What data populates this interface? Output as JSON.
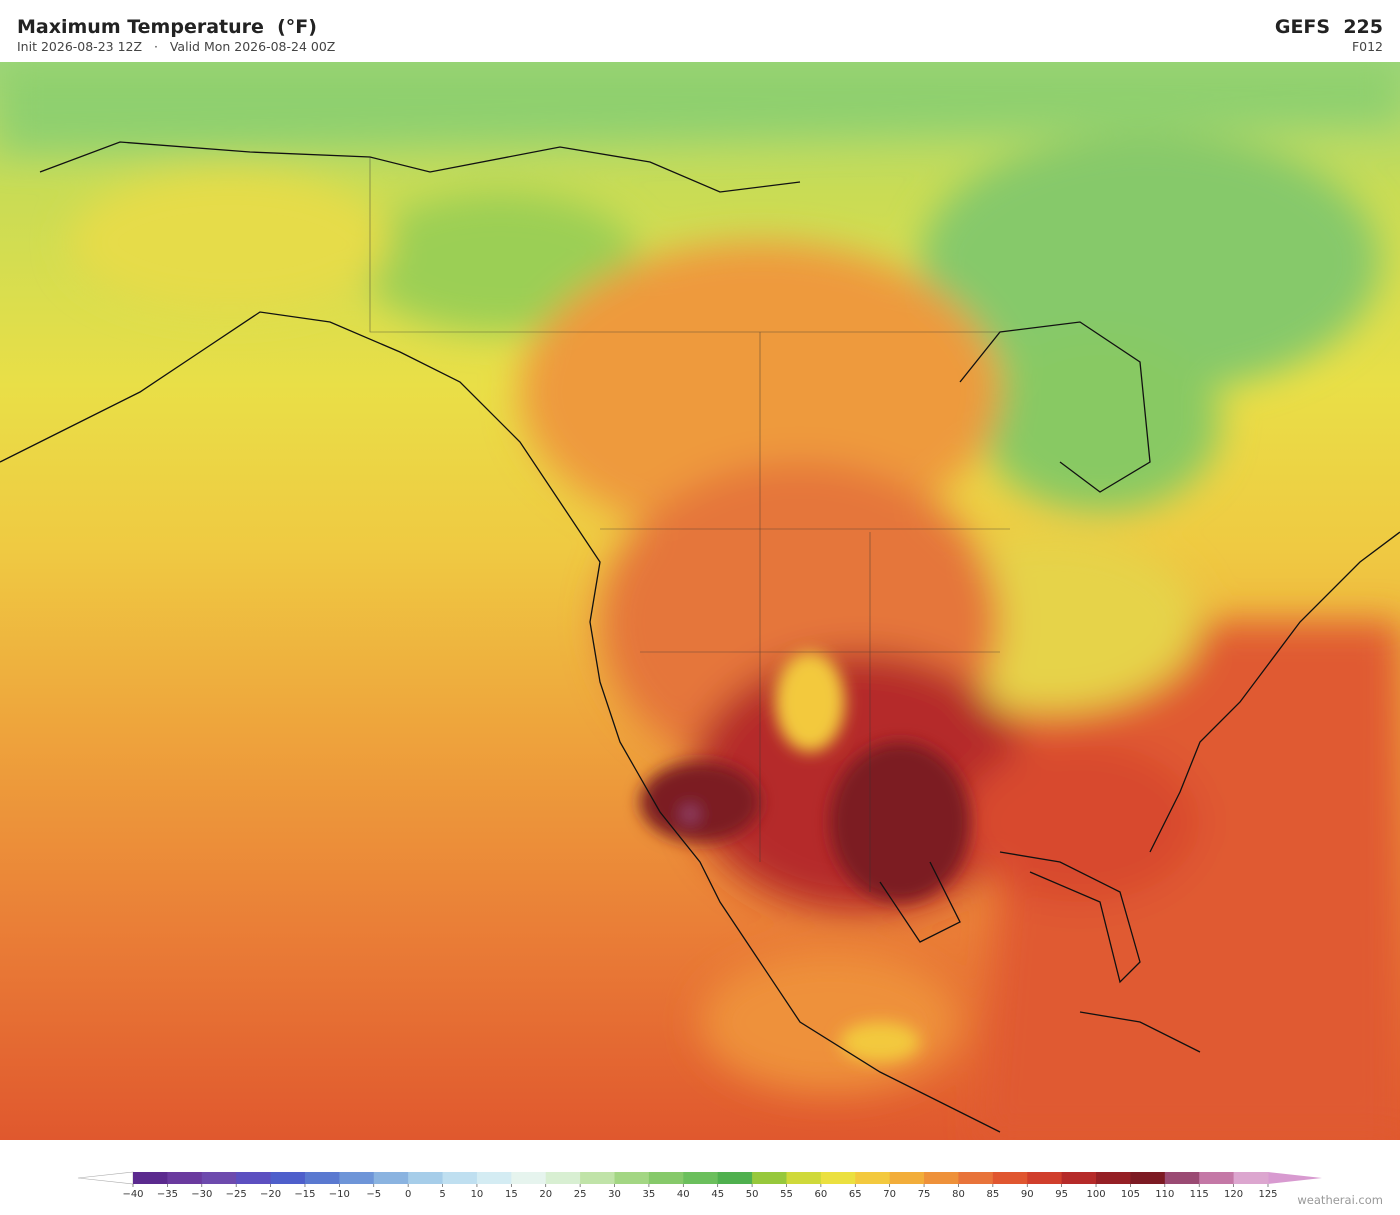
{
  "header": {
    "title": "Maximum Temperature  (°F)",
    "subtitle": "Init 2026-08-23 12Z   ·   Valid Mon 2026-08-24 00Z",
    "model": "GEFS  225",
    "forecast_hour": "F012"
  },
  "colorbar": {
    "ticks": [
      {
        "value": -40,
        "label": "−40"
      },
      {
        "value": -35,
        "label": "−35"
      },
      {
        "value": -30,
        "label": "−30"
      },
      {
        "value": -25,
        "label": "−25"
      },
      {
        "value": -20,
        "label": "−20"
      },
      {
        "value": -15,
        "label": "−15"
      },
      {
        "value": -10,
        "label": "−10"
      },
      {
        "value": -5,
        "label": "−5"
      },
      0,
      5,
      10,
      15,
      20,
      25,
      30,
      35,
      40,
      45,
      50,
      55,
      60,
      65,
      70,
      75,
      80,
      85,
      90,
      95,
      100,
      105,
      110,
      115,
      120,
      125
    ],
    "colors": [
      "#5b2a8e",
      "#6a3a9e",
      "#6d4aad",
      "#5c4fc0",
      "#4e5fcb",
      "#5a79d0",
      "#6e95d8",
      "#8ab3e0",
      "#a6cde9",
      "#bfdff0",
      "#d4ecf3",
      "#e6f4ee",
      "#d8efd2",
      "#c0e3a8",
      "#a3d683",
      "#86c96a",
      "#6bbf5c",
      "#4fb04e",
      "#97c83c",
      "#cfd93a",
      "#ebe040",
      "#f3c93e",
      "#f2ad3a",
      "#ee913a",
      "#e8733a",
      "#e05630",
      "#d03e2c",
      "#b52a29",
      "#951f25",
      "#7c1a23",
      "#9a4a73",
      "#c478a6",
      "#dca6cf"
    ],
    "under_color": "#ffffff",
    "over_color": "#d89ad0"
  },
  "watermark": "weatherai.com"
}
